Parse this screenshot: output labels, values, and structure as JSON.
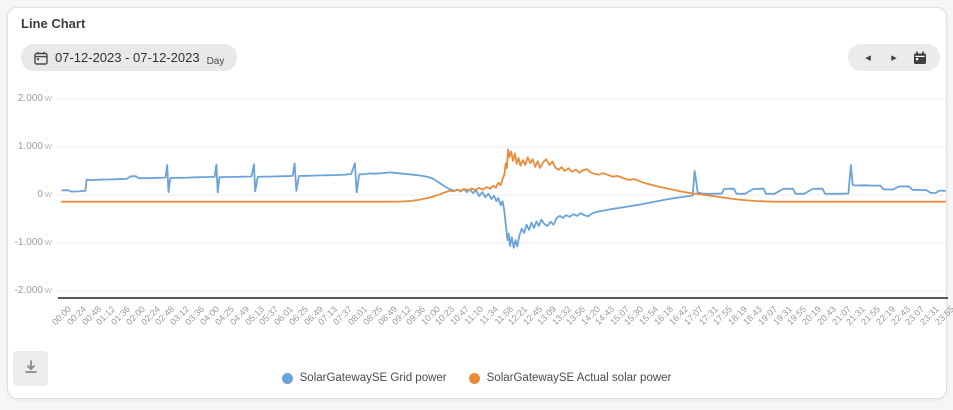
{
  "header": {
    "title": "Line Chart"
  },
  "date_picker": {
    "range": "07-12-2023 - 07-12-2023",
    "granularity": "Day",
    "icon": "calendar-icon"
  },
  "nav": {
    "prev_icon": "◂",
    "next_icon": "▸",
    "calendar_icon": "calendar-icon"
  },
  "toolbar": {
    "download_icon": "download-icon"
  },
  "colors": {
    "grid_power": "#6ba3d9",
    "solar_power": "#e98b3a",
    "gridline": "#ececec",
    "axis_line": "#58585a",
    "tick_text": "#999999"
  },
  "chart_data": {
    "type": "line",
    "unit": "W",
    "ylim": [
      -2000,
      2000
    ],
    "grid": true,
    "legend_position": "bottom-center",
    "y_ticks": [
      {
        "value": 2000,
        "label": "2.000"
      },
      {
        "value": 1000,
        "label": "1.000"
      },
      {
        "value": 0,
        "label": "0"
      },
      {
        "value": -1000,
        "label": "-1.000"
      },
      {
        "value": -2000,
        "label": "-2.000"
      }
    ],
    "x_tick_labels": [
      "00:00",
      "00:24",
      "00:48",
      "01:12",
      "01:36",
      "02:00",
      "02:24",
      "02:48",
      "03:12",
      "03:36",
      "04:00",
      "04:25",
      "04:49",
      "05:13",
      "05:37",
      "06:01",
      "06:25",
      "06:49",
      "07:13",
      "07:37",
      "08:01",
      "08:25",
      "08:49",
      "09:12",
      "09:36",
      "10:00",
      "10:23",
      "10:47",
      "11:10",
      "11:34",
      "11:58",
      "12:21",
      "12:45",
      "13:09",
      "13:32",
      "13:56",
      "14:20",
      "14:43",
      "15:07",
      "15:30",
      "15:54",
      "16:18",
      "16:42",
      "17:07",
      "17:31",
      "17:55",
      "18:19",
      "18:43",
      "19:07",
      "19:31",
      "19:55",
      "20:19",
      "20:43",
      "21:07",
      "21:31",
      "21:55",
      "22:19",
      "22:43",
      "23:07",
      "23:31",
      "23:55"
    ],
    "x_unit": "time-of-day",
    "x_range_minutes": [
      0,
      1435
    ],
    "series": [
      {
        "name": "SolarGatewaySE Grid power",
        "color": "#6ba3d9",
        "points": [
          [
            0,
            95
          ],
          [
            10,
            100
          ],
          [
            15,
            70
          ],
          [
            28,
            75
          ],
          [
            34,
            85
          ],
          [
            38,
            85
          ],
          [
            40,
            320
          ],
          [
            48,
            310
          ],
          [
            60,
            318
          ],
          [
            75,
            322
          ],
          [
            90,
            330
          ],
          [
            105,
            335
          ],
          [
            112,
            390
          ],
          [
            120,
            392
          ],
          [
            125,
            348
          ],
          [
            140,
            352
          ],
          [
            155,
            358
          ],
          [
            168,
            362
          ],
          [
            171,
            620
          ],
          [
            173,
            60
          ],
          [
            176,
            355
          ],
          [
            190,
            358
          ],
          [
            205,
            362
          ],
          [
            215,
            368
          ],
          [
            228,
            372
          ],
          [
            240,
            375
          ],
          [
            248,
            378
          ],
          [
            251,
            635
          ],
          [
            253,
            55
          ],
          [
            256,
            370
          ],
          [
            268,
            374
          ],
          [
            282,
            378
          ],
          [
            295,
            382
          ],
          [
            308,
            386
          ],
          [
            312,
            640
          ],
          [
            314,
            75
          ],
          [
            318,
            380
          ],
          [
            332,
            384
          ],
          [
            348,
            388
          ],
          [
            362,
            392
          ],
          [
            375,
            398
          ],
          [
            378,
            655
          ],
          [
            381,
            85
          ],
          [
            385,
            395
          ],
          [
            398,
            400
          ],
          [
            410,
            404
          ],
          [
            422,
            408
          ],
          [
            435,
            412
          ],
          [
            448,
            416
          ],
          [
            460,
            425
          ],
          [
            470,
            438
          ],
          [
            476,
            660
          ],
          [
            479,
            55
          ],
          [
            483,
            430
          ],
          [
            492,
            436
          ],
          [
            500,
            450
          ],
          [
            508,
            444
          ],
          [
            516,
            452
          ],
          [
            524,
            458
          ],
          [
            532,
            470
          ],
          [
            540,
            462
          ],
          [
            548,
            452
          ],
          [
            556,
            442
          ],
          [
            564,
            432
          ],
          [
            572,
            420
          ],
          [
            580,
            408
          ],
          [
            588,
            394
          ],
          [
            595,
            375
          ],
          [
            602,
            345
          ],
          [
            608,
            300
          ],
          [
            614,
            248
          ],
          [
            620,
            195
          ],
          [
            626,
            148
          ],
          [
            632,
            112
          ],
          [
            638,
            88
          ],
          [
            643,
            115
          ],
          [
            648,
            70
          ],
          [
            653,
            128
          ],
          [
            658,
            58
          ],
          [
            663,
            118
          ],
          [
            668,
            38
          ],
          [
            673,
            95
          ],
          [
            678,
            -25
          ],
          [
            683,
            60
          ],
          [
            688,
            -45
          ],
          [
            693,
            28
          ],
          [
            698,
            -85
          ],
          [
            702,
            -15
          ],
          [
            706,
            -130
          ],
          [
            709,
            -60
          ],
          [
            713,
            -210
          ],
          [
            716,
            -130
          ],
          [
            719,
            -340
          ],
          [
            722,
            -720
          ],
          [
            724,
            -940
          ],
          [
            726,
            -800
          ],
          [
            728,
            -1060
          ],
          [
            731,
            -880
          ],
          [
            734,
            -1100
          ],
          [
            737,
            -940
          ],
          [
            740,
            -1070
          ],
          [
            743,
            -860
          ],
          [
            747,
            -700
          ],
          [
            751,
            -790
          ],
          [
            755,
            -620
          ],
          [
            759,
            -730
          ],
          [
            763,
            -575
          ],
          [
            767,
            -685
          ],
          [
            771,
            -555
          ],
          [
            775,
            -645
          ],
          [
            779,
            -515
          ],
          [
            784,
            -605
          ],
          [
            789,
            -645
          ],
          [
            794,
            -555
          ],
          [
            799,
            -620
          ],
          [
            804,
            -480
          ],
          [
            809,
            -435
          ],
          [
            814,
            -480
          ],
          [
            819,
            -420
          ],
          [
            825,
            -455
          ],
          [
            831,
            -400
          ],
          [
            837,
            -435
          ],
          [
            843,
            -380
          ],
          [
            849,
            -420
          ],
          [
            855,
            -445
          ],
          [
            861,
            -390
          ],
          [
            867,
            -360
          ],
          [
            874,
            -340
          ],
          [
            881,
            -322
          ],
          [
            889,
            -302
          ],
          [
            897,
            -286
          ],
          [
            905,
            -270
          ],
          [
            914,
            -252
          ],
          [
            923,
            -234
          ],
          [
            932,
            -215
          ],
          [
            941,
            -196
          ],
          [
            950,
            -172
          ],
          [
            960,
            -148
          ],
          [
            970,
            -122
          ],
          [
            980,
            -98
          ],
          [
            990,
            -76
          ],
          [
            1000,
            -56
          ],
          [
            1008,
            -42
          ],
          [
            1015,
            -30
          ],
          [
            1021,
            -18
          ],
          [
            1025,
            -10
          ],
          [
            1028,
            500
          ],
          [
            1030,
            350
          ],
          [
            1033,
            55
          ],
          [
            1042,
            28
          ],
          [
            1052,
            25
          ],
          [
            1062,
            28
          ],
          [
            1072,
            30
          ],
          [
            1076,
            128
          ],
          [
            1092,
            132
          ],
          [
            1096,
            28
          ],
          [
            1110,
            25
          ],
          [
            1124,
            128
          ],
          [
            1140,
            132
          ],
          [
            1144,
            28
          ],
          [
            1158,
            25
          ],
          [
            1172,
            128
          ],
          [
            1188,
            132
          ],
          [
            1192,
            28
          ],
          [
            1206,
            25
          ],
          [
            1220,
            128
          ],
          [
            1236,
            132
          ],
          [
            1240,
            28
          ],
          [
            1254,
            25
          ],
          [
            1268,
            28
          ],
          [
            1278,
            32
          ],
          [
            1282,
            625
          ],
          [
            1285,
            210
          ],
          [
            1290,
            198
          ],
          [
            1305,
            202
          ],
          [
            1320,
            196
          ],
          [
            1330,
            194
          ],
          [
            1335,
            118
          ],
          [
            1350,
            112
          ],
          [
            1360,
            178
          ],
          [
            1376,
            182
          ],
          [
            1382,
            108
          ],
          [
            1395,
            104
          ],
          [
            1405,
            100
          ],
          [
            1412,
            42
          ],
          [
            1420,
            46
          ],
          [
            1426,
            92
          ],
          [
            1435,
            88
          ]
        ]
      },
      {
        "name": "SolarGatewaySE Actual solar power",
        "color": "#e98b3a",
        "points": [
          [
            0,
            -140
          ],
          [
            100,
            -140
          ],
          [
            200,
            -140
          ],
          [
            300,
            -140
          ],
          [
            400,
            -140
          ],
          [
            480,
            -140
          ],
          [
            520,
            -140
          ],
          [
            545,
            -138
          ],
          [
            558,
            -132
          ],
          [
            568,
            -122
          ],
          [
            578,
            -105
          ],
          [
            588,
            -82
          ],
          [
            597,
            -55
          ],
          [
            605,
            -25
          ],
          [
            612,
            5
          ],
          [
            618,
            35
          ],
          [
            624,
            62
          ],
          [
            630,
            92
          ],
          [
            636,
            75
          ],
          [
            642,
            112
          ],
          [
            648,
            88
          ],
          [
            654,
            125
          ],
          [
            660,
            98
          ],
          [
            666,
            135
          ],
          [
            672,
            105
          ],
          [
            678,
            148
          ],
          [
            684,
            115
          ],
          [
            690,
            165
          ],
          [
            696,
            132
          ],
          [
            701,
            192
          ],
          [
            705,
            152
          ],
          [
            709,
            255
          ],
          [
            713,
            205
          ],
          [
            716,
            330
          ],
          [
            719,
            430
          ],
          [
            721,
            660
          ],
          [
            723,
            560
          ],
          [
            725,
            950
          ],
          [
            727,
            790
          ],
          [
            730,
            905
          ],
          [
            733,
            710
          ],
          [
            736,
            865
          ],
          [
            739,
            650
          ],
          [
            742,
            770
          ],
          [
            745,
            610
          ],
          [
            749,
            725
          ],
          [
            753,
            625
          ],
          [
            757,
            785
          ],
          [
            761,
            665
          ],
          [
            765,
            745
          ],
          [
            769,
            585
          ],
          [
            773,
            705
          ],
          [
            777,
            565
          ],
          [
            782,
            685
          ],
          [
            787,
            745
          ],
          [
            792,
            625
          ],
          [
            797,
            700
          ],
          [
            802,
            565
          ],
          [
            807,
            522
          ],
          [
            812,
            580
          ],
          [
            817,
            502
          ],
          [
            823,
            558
          ],
          [
            829,
            482
          ],
          [
            835,
            532
          ],
          [
            841,
            462
          ],
          [
            847,
            518
          ],
          [
            853,
            540
          ],
          [
            859,
            472
          ],
          [
            865,
            442
          ],
          [
            872,
            422
          ],
          [
            879,
            455
          ],
          [
            887,
            420
          ],
          [
            895,
            382
          ],
          [
            903,
            398
          ],
          [
            912,
            352
          ],
          [
            921,
            315
          ],
          [
            930,
            332
          ],
          [
            939,
            285
          ],
          [
            948,
            245
          ],
          [
            958,
            212
          ],
          [
            968,
            178
          ],
          [
            978,
            150
          ],
          [
            988,
            122
          ],
          [
            998,
            95
          ],
          [
            1008,
            68
          ],
          [
            1018,
            45
          ],
          [
            1030,
            22
          ],
          [
            1044,
            2
          ],
          [
            1058,
            -22
          ],
          [
            1072,
            -48
          ],
          [
            1086,
            -72
          ],
          [
            1100,
            -95
          ],
          [
            1114,
            -112
          ],
          [
            1128,
            -126
          ],
          [
            1142,
            -134
          ],
          [
            1160,
            -139
          ],
          [
            1200,
            -140
          ],
          [
            1300,
            -140
          ],
          [
            1435,
            -140
          ]
        ]
      }
    ]
  }
}
